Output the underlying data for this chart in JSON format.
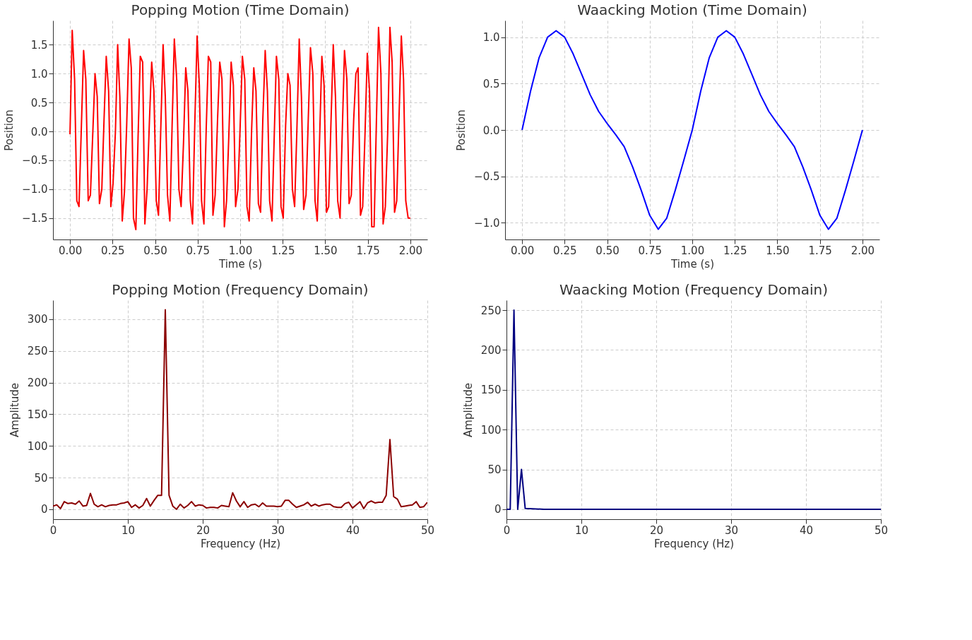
{
  "chart_data": [
    {
      "type": "line",
      "title": "Popping Motion (Time Domain)",
      "xlabel": "Time (s)",
      "ylabel": "Position",
      "grid": true,
      "line_style": "solid",
      "xlim": [
        -0.1,
        2.1
      ],
      "ylim": [
        -1.87,
        1.92
      ],
      "xticks": [
        {
          "value": 0,
          "label": "0.00"
        },
        {
          "value": 0.25,
          "label": "0.25"
        },
        {
          "value": 0.5,
          "label": "0.50"
        },
        {
          "value": 0.75,
          "label": "0.75"
        },
        {
          "value": 1,
          "label": "1.00"
        },
        {
          "value": 1.25,
          "label": "1.25"
        },
        {
          "value": 1.5,
          "label": "1.50"
        },
        {
          "value": 1.75,
          "label": "1.75"
        },
        {
          "value": 2,
          "label": "2.00"
        }
      ],
      "yticks": [
        {
          "value": -1.5,
          "label": "−1.5"
        },
        {
          "value": -1,
          "label": "−1.0"
        },
        {
          "value": -0.5,
          "label": "−0.5"
        },
        {
          "value": 0,
          "label": "0.0"
        },
        {
          "value": 0.5,
          "label": "0.5"
        },
        {
          "value": 1,
          "label": "1.0"
        },
        {
          "value": 1.5,
          "label": "1.5"
        }
      ],
      "series": [
        {
          "color": "#ff0000",
          "x": [
            0,
            0.013,
            0.027,
            0.04,
            0.053,
            0.067,
            0.08,
            0.093,
            0.107,
            0.12,
            0.133,
            0.147,
            0.16,
            0.173,
            0.187,
            0.2,
            0.213,
            0.227,
            0.24,
            0.253,
            0.267,
            0.28,
            0.293,
            0.307,
            0.32,
            0.333,
            0.347,
            0.36,
            0.373,
            0.387,
            0.4,
            0.413,
            0.427,
            0.44,
            0.453,
            0.467,
            0.48,
            0.493,
            0.507,
            0.52,
            0.533,
            0.547,
            0.56,
            0.573,
            0.587,
            0.6,
            0.613,
            0.627,
            0.64,
            0.653,
            0.667,
            0.68,
            0.693,
            0.707,
            0.72,
            0.733,
            0.747,
            0.76,
            0.773,
            0.787,
            0.8,
            0.813,
            0.827,
            0.84,
            0.853,
            0.867,
            0.88,
            0.893,
            0.907,
            0.92,
            0.933,
            0.947,
            0.96,
            0.973,
            0.987,
            1.0,
            1.013,
            1.027,
            1.04,
            1.053,
            1.067,
            1.08,
            1.093,
            1.107,
            1.12,
            1.133,
            1.147,
            1.16,
            1.173,
            1.187,
            1.2,
            1.213,
            1.227,
            1.24,
            1.253,
            1.267,
            1.28,
            1.293,
            1.307,
            1.32,
            1.333,
            1.347,
            1.36,
            1.373,
            1.387,
            1.4,
            1.413,
            1.427,
            1.44,
            1.453,
            1.467,
            1.48,
            1.493,
            1.507,
            1.52,
            1.533,
            1.547,
            1.56,
            1.573,
            1.587,
            1.6,
            1.613,
            1.627,
            1.64,
            1.653,
            1.667,
            1.68,
            1.693,
            1.707,
            1.72,
            1.733,
            1.747,
            1.76,
            1.773,
            1.787,
            1.8,
            1.813,
            1.827,
            1.84,
            1.853,
            1.867,
            1.88,
            1.893,
            1.907,
            1.92,
            1.933,
            1.947,
            1.96,
            1.973,
            1.987,
            2.0
          ],
          "values": [
            -0.05,
            1.75,
            0.9,
            -1.2,
            -1.3,
            0.1,
            1.4,
            0.9,
            -1.2,
            -1.1,
            -0.1,
            1.0,
            0.6,
            -1.25,
            -1.0,
            0.2,
            1.3,
            0.7,
            -1.3,
            -0.9,
            0.0,
            1.5,
            0.6,
            -1.55,
            -1.05,
            0.1,
            1.6,
            1.1,
            -1.5,
            -1.7,
            -0.1,
            1.3,
            1.2,
            -1.6,
            -1.0,
            0.2,
            1.2,
            0.7,
            -1.2,
            -1.45,
            0.0,
            1.5,
            0.6,
            -1.1,
            -1.55,
            0.1,
            1.6,
            0.9,
            -1.0,
            -1.3,
            -0.2,
            1.1,
            0.7,
            -1.2,
            -1.6,
            0.1,
            1.65,
            0.8,
            -1.2,
            -1.6,
            0.0,
            1.3,
            1.2,
            -1.45,
            -1.1,
            0.2,
            1.2,
            0.9,
            -1.65,
            -1.2,
            -0.1,
            1.2,
            0.8,
            -1.3,
            -1.0,
            0.1,
            1.3,
            0.9,
            -1.3,
            -1.55,
            0.0,
            1.1,
            0.7,
            -1.25,
            -1.4,
            0.2,
            1.4,
            0.7,
            -1.2,
            -1.55,
            -0.1,
            1.3,
            0.9,
            -1.3,
            -1.5,
            0.1,
            1.0,
            0.8,
            -1.0,
            -1.3,
            0.0,
            1.6,
            0.6,
            -1.35,
            -1.1,
            0.2,
            1.45,
            1.0,
            -1.2,
            -1.55,
            -0.1,
            1.3,
            0.8,
            -1.4,
            -1.3,
            0.1,
            1.5,
            0.6,
            -1.2,
            -1.5,
            0.0,
            1.4,
            0.9,
            -1.25,
            -1.1,
            0.2,
            1.0,
            1.1,
            -1.45,
            -1.3,
            -0.1,
            1.35,
            0.7,
            -1.65,
            -1.65,
            0.1,
            1.8,
            1.0,
            -1.6,
            -1.3,
            0.0,
            1.8,
            1.2,
            -1.4,
            -1.2,
            0.2,
            1.65,
            0.9,
            -1.2,
            -1.5,
            -1.5
          ]
        }
      ]
    },
    {
      "type": "line",
      "title": "Waacking Motion (Time Domain)",
      "xlabel": "Time (s)",
      "ylabel": "Position",
      "grid": true,
      "line_style": "solid",
      "xlim": [
        -0.1,
        2.1
      ],
      "ylim": [
        -1.18,
        1.18
      ],
      "xticks": [
        {
          "value": 0,
          "label": "0.00"
        },
        {
          "value": 0.25,
          "label": "0.25"
        },
        {
          "value": 0.5,
          "label": "0.50"
        },
        {
          "value": 0.75,
          "label": "0.75"
        },
        {
          "value": 1,
          "label": "1.00"
        },
        {
          "value": 1.25,
          "label": "1.25"
        },
        {
          "value": 1.5,
          "label": "1.50"
        },
        {
          "value": 1.75,
          "label": "1.75"
        },
        {
          "value": 2,
          "label": "2.00"
        }
      ],
      "yticks": [
        {
          "value": -1,
          "label": "−1.0"
        },
        {
          "value": -0.5,
          "label": "−0.5"
        },
        {
          "value": 0,
          "label": "0.0"
        },
        {
          "value": 0.5,
          "label": "0.5"
        },
        {
          "value": 1,
          "label": "1.0"
        }
      ],
      "series": [
        {
          "color": "#0000ff",
          "x": [
            0,
            0.05,
            0.1,
            0.15,
            0.2,
            0.25,
            0.3,
            0.35,
            0.4,
            0.45,
            0.5,
            0.55,
            0.6,
            0.65,
            0.7,
            0.75,
            0.8,
            0.85,
            0.9,
            0.95,
            1.0,
            1.05,
            1.1,
            1.15,
            1.2,
            1.25,
            1.3,
            1.35,
            1.4,
            1.45,
            1.5,
            1.55,
            1.6,
            1.65,
            1.7,
            1.75,
            1.8,
            1.85,
            1.9,
            1.95,
            2.0
          ],
          "values": [
            0,
            0.42,
            0.78,
            1.0,
            1.07,
            1.0,
            0.82,
            0.6,
            0.38,
            0.2,
            0.07,
            -0.05,
            -0.18,
            -0.4,
            -0.65,
            -0.92,
            -1.07,
            -0.95,
            -0.65,
            -0.33,
            0,
            0.42,
            0.78,
            1.0,
            1.07,
            1.0,
            0.82,
            0.6,
            0.38,
            0.2,
            0.07,
            -0.05,
            -0.18,
            -0.4,
            -0.65,
            -0.92,
            -1.07,
            -0.95,
            -0.65,
            -0.33,
            0
          ]
        }
      ]
    },
    {
      "type": "line",
      "title": "Popping Motion (Frequency Domain)",
      "xlabel": "Frequency (Hz)",
      "ylabel": "Amplitude",
      "grid": true,
      "line_style": "solid",
      "xlim": [
        0,
        50
      ],
      "ylim": [
        -15.7,
        330
      ],
      "xticks": [
        0,
        10,
        20,
        30,
        40,
        50
      ],
      "yticks": [
        0,
        50,
        100,
        150,
        200,
        250,
        300
      ],
      "series": [
        {
          "color": "#8b0000",
          "x": [
            0,
            0.5,
            1,
            1.5,
            2,
            2.5,
            3,
            3.5,
            4,
            4.5,
            5,
            5.5,
            6,
            6.5,
            7,
            7.5,
            8,
            8.5,
            9,
            9.5,
            10,
            10.5,
            11,
            11.5,
            12,
            12.5,
            13,
            13.5,
            14,
            14.5,
            15,
            15.5,
            16,
            16.5,
            17,
            17.5,
            18,
            18.5,
            19,
            19.5,
            20,
            20.5,
            21,
            21.5,
            22,
            22.5,
            23,
            23.5,
            24,
            24.5,
            25,
            25.5,
            26,
            26.5,
            27,
            27.5,
            28,
            28.5,
            29,
            29.5,
            30,
            30.5,
            31,
            31.5,
            32,
            32.5,
            33,
            33.5,
            34,
            34.5,
            35,
            35.5,
            36,
            36.5,
            37,
            37.5,
            38,
            38.5,
            39,
            39.5,
            40,
            40.5,
            41,
            41.5,
            42,
            42.5,
            43,
            43.5,
            44,
            44.5,
            45,
            45.5,
            46,
            46.5,
            47,
            47.5,
            48,
            48.5,
            49,
            49.5,
            50
          ],
          "values": [
            5,
            7,
            1,
            12,
            9,
            10,
            8,
            13,
            5,
            6,
            25,
            8,
            4,
            7,
            4,
            6,
            7,
            7,
            9,
            10,
            12,
            3,
            7,
            2,
            6,
            17,
            5,
            14,
            22,
            22,
            315,
            22,
            5,
            0,
            8,
            2,
            6,
            12,
            5,
            7,
            6,
            2,
            3,
            3,
            2,
            6,
            5,
            4,
            26,
            13,
            4,
            12,
            3,
            7,
            8,
            4,
            10,
            5,
            5,
            5,
            4,
            5,
            14,
            14,
            8,
            3,
            5,
            7,
            11,
            5,
            8,
            5,
            7,
            8,
            8,
            4,
            3,
            3,
            9,
            11,
            2,
            7,
            12,
            1,
            10,
            13,
            10,
            11,
            11,
            22,
            110,
            20,
            16,
            4,
            5,
            6,
            7,
            12,
            3,
            4,
            11
          ]
        }
      ]
    },
    {
      "type": "line",
      "title": "Waacking Motion (Frequency Domain)",
      "xlabel": "Frequency (Hz)",
      "ylabel": "Amplitude",
      "grid": true,
      "line_style": "solid",
      "xlim": [
        0,
        50
      ],
      "ylim": [
        -12.5,
        262.5
      ],
      "xticks": [
        0,
        10,
        20,
        30,
        40,
        50
      ],
      "yticks": [
        0,
        50,
        100,
        150,
        200,
        250
      ],
      "series": [
        {
          "color": "#000080",
          "x": [
            0,
            0.5,
            1,
            1.5,
            2,
            2.5,
            5,
            10,
            20,
            30,
            40,
            50
          ],
          "values": [
            0,
            0,
            250,
            0,
            50,
            1,
            0,
            0,
            0,
            0,
            0,
            0
          ]
        }
      ]
    }
  ]
}
